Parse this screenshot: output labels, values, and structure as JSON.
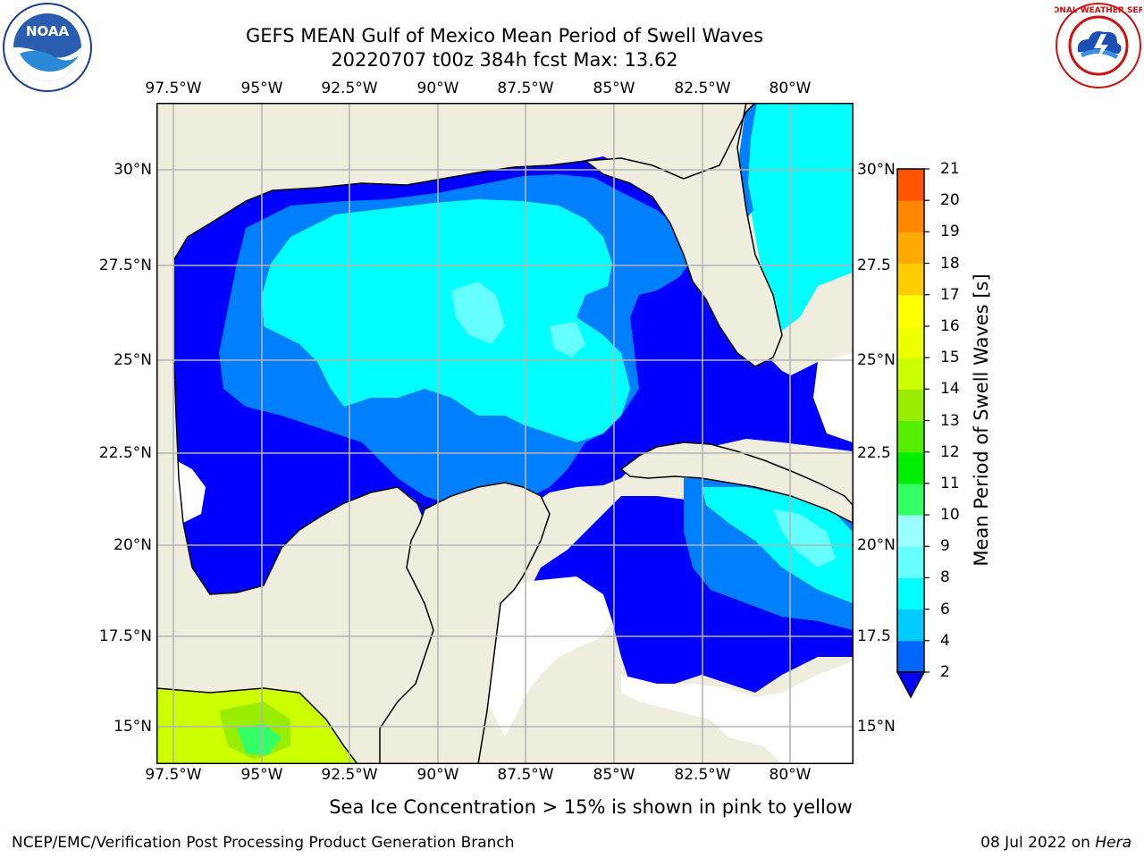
{
  "title": {
    "line1": "GEFS MEAN Gulf of Mexico Mean Period of Swell Waves",
    "line2": "20220707 t00z 384h fcst   Max: 13.62"
  },
  "map": {
    "lon_ticks": [
      "97.5°W",
      "95°W",
      "92.5°W",
      "90°W",
      "87.5°W",
      "85°W",
      "82.5°W",
      "80°W"
    ],
    "lat_ticks_left": [
      "30°N",
      "27.5°N",
      "25°N",
      "22.5°N",
      "20°N",
      "17.5°N",
      "15°N"
    ],
    "lat_ticks_right": [
      "30°N",
      "27.5",
      "25°N",
      "22.5",
      "20°N",
      "17.5",
      "15°N"
    ],
    "land_color": "#efedde",
    "grid_color": "#b4b4b4"
  },
  "colorbar": {
    "label": "Mean Period of Swell Waves [s]",
    "ticks": [
      "2",
      "4",
      "6",
      "8",
      "9",
      "10",
      "11",
      "12",
      "13",
      "14",
      "15",
      "16",
      "17",
      "18",
      "19",
      "20",
      "21"
    ],
    "colors": [
      "#0066ff",
      "#00ccff",
      "#00ffff",
      "#66ffff",
      "#99ffff",
      "#33ff66",
      "#00ee00",
      "#55ee00",
      "#99ee00",
      "#ccff00",
      "#eeff00",
      "#ffff00",
      "#ffcc00",
      "#ffaa00",
      "#ff8800",
      "#ff5500",
      "#ff2200",
      "#ff0000"
    ],
    "under_color": "#0000ff"
  },
  "footer": {
    "ice_note": "Sea Ice Concentration > 15% is shown in pink to yellow",
    "credit": "NCEP/EMC/Verification Post Processing Product Generation Branch",
    "date": "08 Jul 2022 on",
    "host": "Hera"
  },
  "logos": {
    "noaa_text": "NOAA",
    "nws_text": "NATIONAL WEATHER SERVICE"
  }
}
